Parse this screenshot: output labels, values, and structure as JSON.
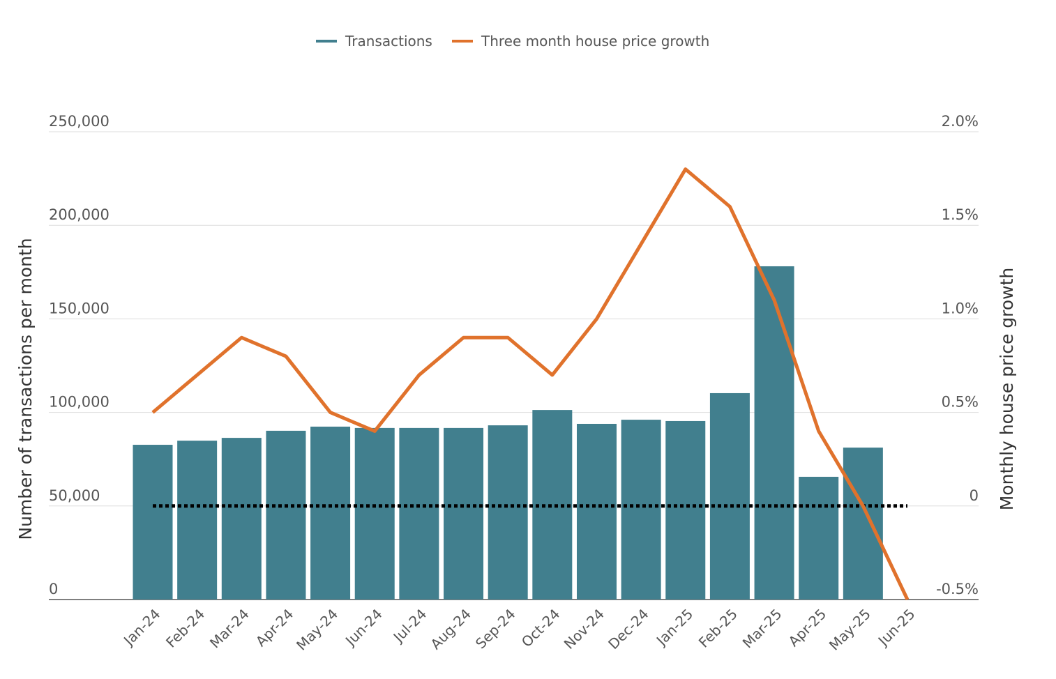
{
  "chart_data": {
    "type": "bar+line",
    "categories": [
      "Jan-24",
      "Feb-24",
      "Mar-24",
      "Apr-24",
      "May-24",
      "Jun-24",
      "Jul-24",
      "Aug-24",
      "Sep-24",
      "Oct-24",
      "Nov-24",
      "Dec-24",
      "Jan-25",
      "Feb-25",
      "Mar-25",
      "Apr-25",
      "May-25",
      "Jun-25"
    ],
    "series": [
      {
        "name": "Transactions",
        "type": "bar",
        "axis": "left",
        "color": "#417f8e",
        "values": [
          82700,
          84900,
          86400,
          90200,
          92400,
          91700,
          91700,
          91700,
          93100,
          101300,
          93900,
          96100,
          95400,
          110300,
          178100,
          65600,
          81200,
          null
        ]
      },
      {
        "name": "Three month house price growth",
        "type": "line",
        "axis": "right",
        "color": "#e0722c",
        "values": [
          0.5,
          0.7,
          0.9,
          0.8,
          0.5,
          0.4,
          0.7,
          0.9,
          0.9,
          0.7,
          1.0,
          1.4,
          1.8,
          1.6,
          1.1,
          0.4,
          0.0,
          -0.5
        ]
      }
    ],
    "ylabel": "Number of transactions per month",
    "y2label": "Monthly house price growth",
    "ylim": [
      0,
      250000
    ],
    "y2lim": [
      -0.5,
      2.0
    ],
    "yticks": [
      "0",
      "50,000",
      "100,000",
      "150,000",
      "200,000",
      "250,000"
    ],
    "y2ticks": [
      "-0.5%",
      "0",
      "0.5%",
      "1.0%",
      "1.5%",
      "2.0%"
    ],
    "reference_line": {
      "axis": "right",
      "value": 0,
      "style": "dotted",
      "color": "#000000"
    },
    "grid": true,
    "legend": "top-center"
  }
}
